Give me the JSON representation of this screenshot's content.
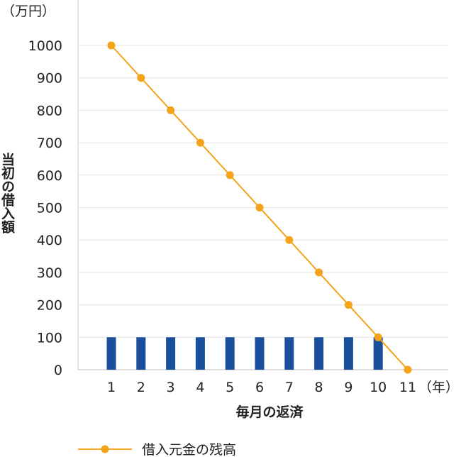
{
  "chart_data": {
    "type": "bar+line",
    "categories": [
      "1",
      "2",
      "3",
      "4",
      "5",
      "6",
      "7",
      "8",
      "9",
      "10",
      "11"
    ],
    "y_unit": "（万円）",
    "x_unit": "（年）",
    "xlabel": "毎月の返済",
    "ylabel": "当初の借入額",
    "ylim": [
      0,
      1000
    ],
    "yticks": [
      0,
      100,
      200,
      300,
      400,
      500,
      600,
      700,
      800,
      900,
      1000
    ],
    "grid": true,
    "legend_position": "bottom-left",
    "bars": {
      "values": [
        100,
        100,
        100,
        100,
        100,
        100,
        100,
        100,
        100,
        100
      ],
      "color": "#1a4f9c"
    },
    "line": {
      "name": "借入元金の残高",
      "values": [
        1000,
        900,
        800,
        700,
        600,
        500,
        400,
        300,
        200,
        100,
        0
      ],
      "color": "#f5a31a"
    }
  }
}
